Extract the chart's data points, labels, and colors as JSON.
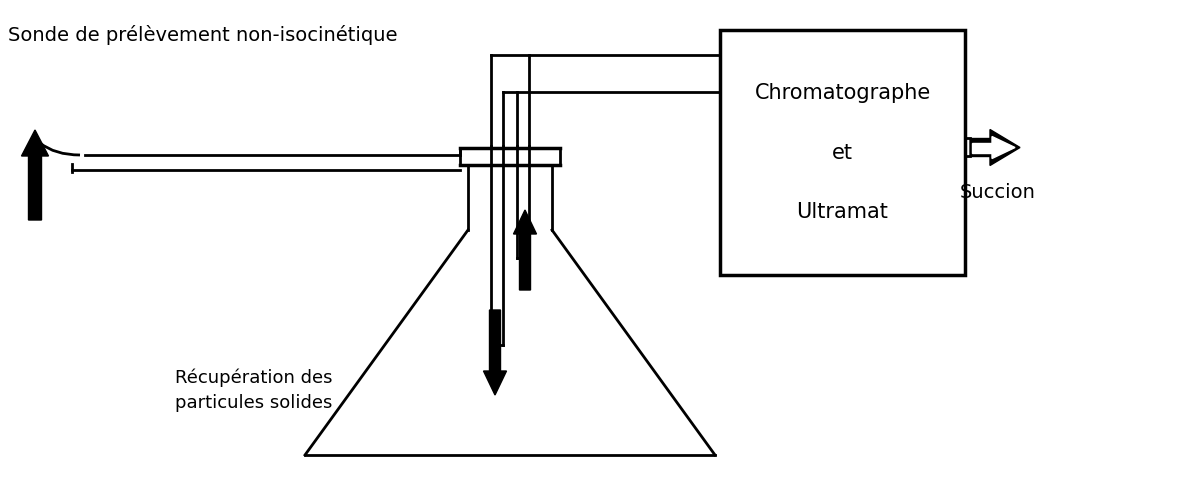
{
  "bg_color": "#ffffff",
  "text_color": "#000000",
  "probe_label": "Sonde de prélèvement non-isocinétique",
  "recovery_label": "Récupération des\nparticules solides",
  "box_label": "Chromatographe\n\net\n\nUltramat",
  "suction_label": "Succion",
  "figsize": [
    11.96,
    4.9
  ],
  "dpi": 100
}
